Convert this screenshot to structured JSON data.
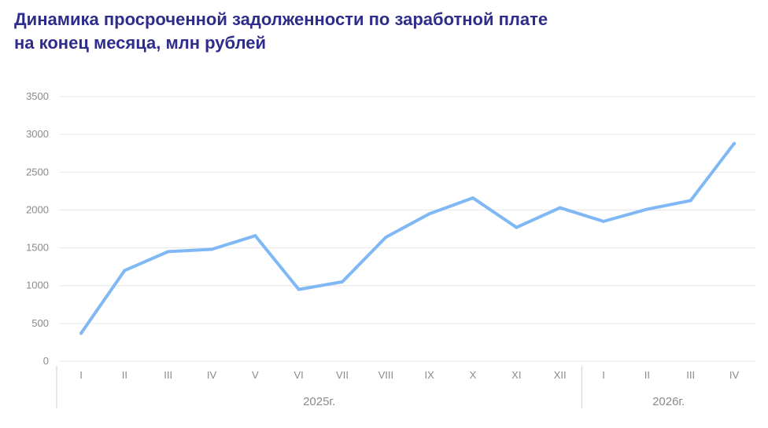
{
  "title_lines": [
    "Динамика просроченной задолженности по заработной плате",
    "на конец месяца, млн рублей"
  ],
  "colors": {
    "title": "#2f2d8c",
    "line": "#7fb8f5",
    "grid": "#e6e6e6",
    "axis_text": "#8a8a8a"
  },
  "chart_data": {
    "type": "line",
    "title": "Динамика просроченной задолженности по заработной плате на конец месяца, млн рублей",
    "categories": [
      "I",
      "II",
      "III",
      "IV",
      "V",
      "VI",
      "VII",
      "VIII",
      "IX",
      "X",
      "XI",
      "XII",
      "I",
      "II",
      "III",
      "IV"
    ],
    "groups": [
      {
        "label": "2025г.",
        "count": 12
      },
      {
        "label": "2026г.",
        "count": 4
      }
    ],
    "series": [
      {
        "values": [
          370,
          1200,
          1450,
          1480,
          1660,
          950,
          1050,
          1640,
          1950,
          2160,
          1770,
          2030,
          1850,
          2010,
          2125,
          2880
        ]
      }
    ],
    "ylim": [
      0,
      3500
    ],
    "yticks": [
      0,
      500,
      1000,
      1500,
      2000,
      2500,
      3000,
      3500
    ],
    "grid": true,
    "legend": "none"
  }
}
